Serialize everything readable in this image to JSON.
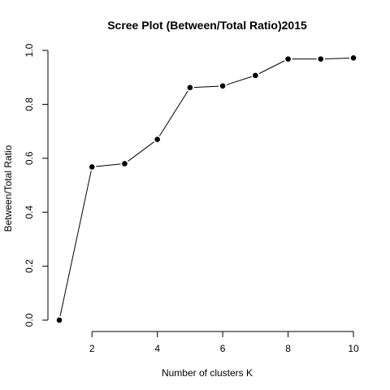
{
  "chart_data": {
    "type": "line",
    "title": "Scree Plot (Between/Total Ratio)2015",
    "xlabel": "Number of clusters K",
    "ylabel": "Between/Total Ratio",
    "xlim": [
      1,
      10
    ],
    "ylim": [
      0,
      1
    ],
    "x_ticks": [
      2,
      4,
      6,
      8,
      10
    ],
    "x_tick_labels": [
      "2",
      "4",
      "6",
      "8",
      "10"
    ],
    "y_ticks": [
      0.0,
      0.2,
      0.4,
      0.6,
      0.8,
      1.0
    ],
    "y_tick_labels": [
      "0.0",
      "0.2",
      "0.4",
      "0.6",
      "0.8",
      "1.0"
    ],
    "grid": false,
    "series": [
      {
        "x": [
          1,
          2,
          3,
          4,
          5,
          6,
          7,
          8,
          9,
          10
        ],
        "y": [
          0.0,
          0.568,
          0.58,
          0.67,
          0.862,
          0.868,
          0.907,
          0.968,
          0.968,
          0.972
        ],
        "marker": "filled-circle",
        "line": "solid",
        "color": "#000000"
      }
    ]
  }
}
